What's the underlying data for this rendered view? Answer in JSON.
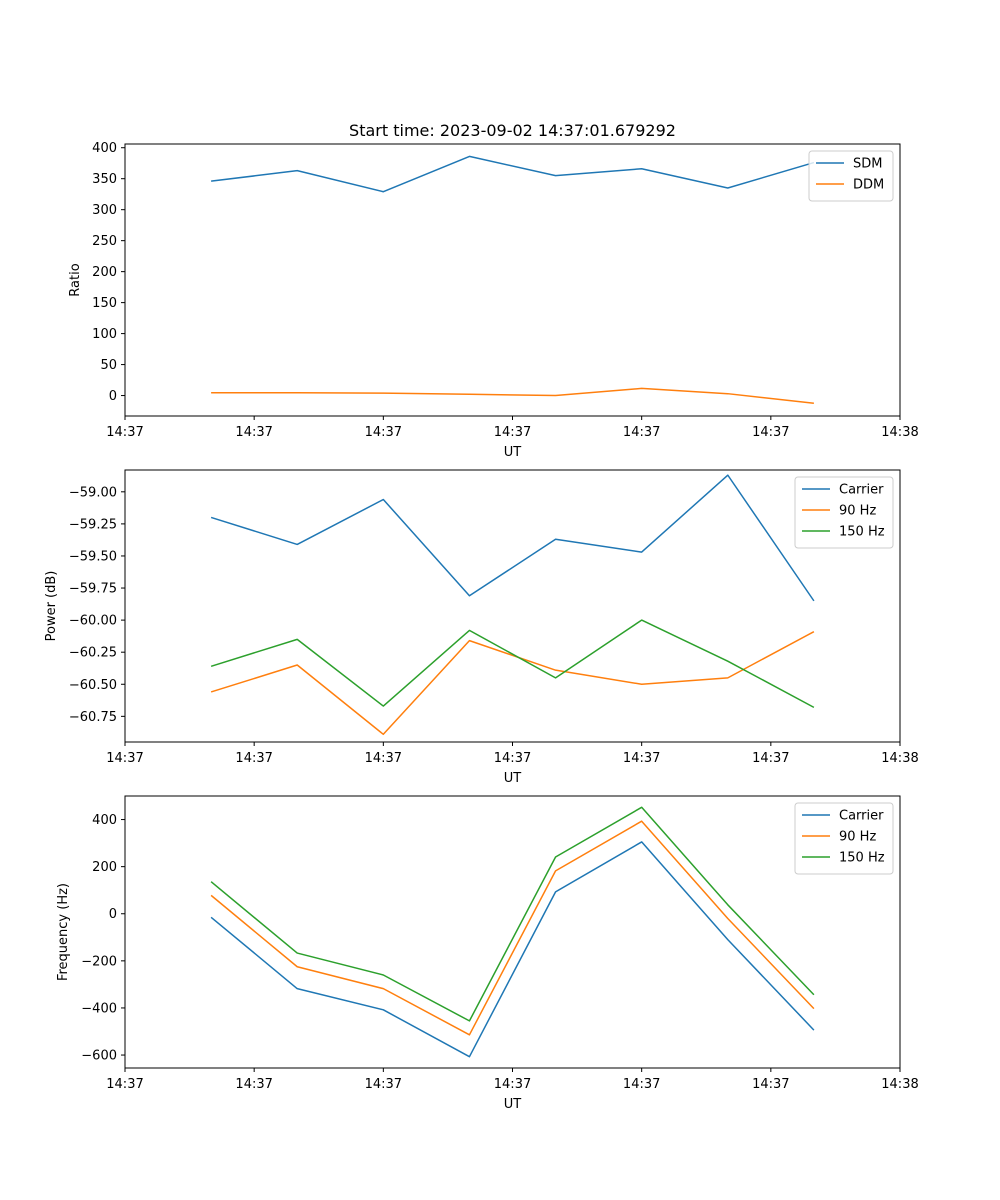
{
  "figure_title": "Start time: 2023-09-02 14:37:01.679292",
  "chart_data": [
    {
      "type": "line",
      "title": "Start time: 2023-09-02 14:37:01.679292",
      "xlabel": "UT",
      "ylabel": "Ratio",
      "xlim": [
        0,
        9
      ],
      "ylim": [
        -33,
        406
      ],
      "x": [
        1,
        2,
        3,
        4,
        5,
        6,
        7,
        8
      ],
      "x_tick_values": [
        0,
        1.5,
        3,
        4.5,
        6,
        7.5,
        9
      ],
      "x_tick_labels": [
        "14:37",
        "14:37",
        "14:37",
        "14:37",
        "14:37",
        "14:37",
        "14:38"
      ],
      "y_tick_values": [
        0,
        50,
        100,
        150,
        200,
        250,
        300,
        350,
        400
      ],
      "y_tick_labels": [
        "0",
        "50",
        "100",
        "150",
        "200",
        "250",
        "300",
        "350",
        "400"
      ],
      "legend_position": "top-right",
      "grid": false,
      "series": [
        {
          "name": "SDM",
          "color": "#1f77b4",
          "values": [
            346,
            363,
            329,
            386,
            355,
            366,
            335,
            376
          ]
        },
        {
          "name": "DDM",
          "color": "#ff7f0e",
          "values": [
            4.5,
            4.5,
            4.0,
            2.0,
            0.0,
            11.5,
            3.0,
            -12.5
          ]
        }
      ]
    },
    {
      "type": "line",
      "title": "",
      "xlabel": "UT",
      "ylabel": "Power (dB)",
      "xlim": [
        0,
        9
      ],
      "ylim": [
        -60.95,
        -58.83
      ],
      "x": [
        1,
        2,
        3,
        4,
        5,
        6,
        7,
        8
      ],
      "x_tick_values": [
        0,
        1.5,
        3,
        4.5,
        6,
        7.5,
        9
      ],
      "x_tick_labels": [
        "14:37",
        "14:37",
        "14:37",
        "14:37",
        "14:37",
        "14:37",
        "14:38"
      ],
      "y_tick_values": [
        -59.0,
        -59.25,
        -59.5,
        -59.75,
        -60.0,
        -60.25,
        -60.5,
        -60.75
      ],
      "y_tick_labels": [
        "−59.00",
        "−59.25",
        "−59.50",
        "−59.75",
        "−60.00",
        "−60.25",
        "−60.50",
        "−60.75"
      ],
      "legend_position": "top-right",
      "grid": false,
      "series": [
        {
          "name": "Carrier",
          "color": "#1f77b4",
          "values": [
            -59.2,
            -59.41,
            -59.06,
            -59.81,
            -59.37,
            -59.47,
            -58.87,
            -59.85
          ]
        },
        {
          "name": "90 Hz",
          "color": "#ff7f0e",
          "values": [
            -60.56,
            -60.35,
            -60.89,
            -60.16,
            -60.39,
            -60.5,
            -60.45,
            -60.09
          ]
        },
        {
          "name": "150 Hz",
          "color": "#2ca02c",
          "values": [
            -60.36,
            -60.15,
            -60.67,
            -60.08,
            -60.45,
            -60.0,
            -60.32,
            -60.68
          ]
        }
      ]
    },
    {
      "type": "line",
      "title": "",
      "xlabel": "UT",
      "ylabel": "Frequency (Hz)",
      "xlim": [
        0,
        9
      ],
      "ylim": [
        -655,
        500
      ],
      "x": [
        1,
        2,
        3,
        4,
        5,
        6,
        7,
        8
      ],
      "x_tick_values": [
        0,
        1.5,
        3,
        4.5,
        6,
        7.5,
        9
      ],
      "x_tick_labels": [
        "14:37",
        "14:37",
        "14:37",
        "14:37",
        "14:37",
        "14:37",
        "14:38"
      ],
      "y_tick_values": [
        400,
        200,
        0,
        -200,
        -400,
        -600
      ],
      "y_tick_labels": [
        "400",
        "200",
        "0",
        "−200",
        "−400",
        "−600"
      ],
      "legend_position": "top-right",
      "grid": false,
      "series": [
        {
          "name": "Carrier",
          "color": "#1f77b4",
          "values": [
            -15,
            -318,
            -408,
            -607,
            93,
            305,
            -110,
            -494
          ]
        },
        {
          "name": "90 Hz",
          "color": "#ff7f0e",
          "values": [
            78,
            -225,
            -318,
            -514,
            182,
            393,
            -20,
            -403
          ]
        },
        {
          "name": "150 Hz",
          "color": "#2ca02c",
          "values": [
            136,
            -167,
            -260,
            -455,
            241,
            452,
            38,
            -344
          ]
        }
      ]
    }
  ]
}
